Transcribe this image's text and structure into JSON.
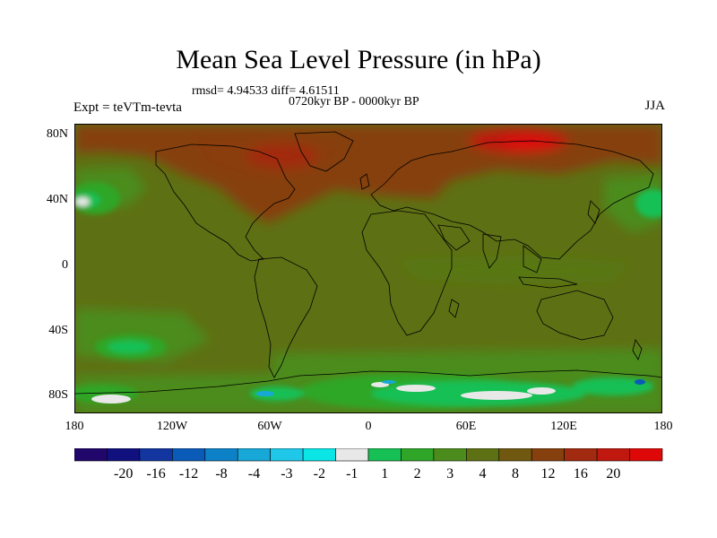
{
  "title": "Mean Sea Level Pressure (in hPa)",
  "stats": "rmsd= 4.94533 diff= 4.61511",
  "period": "0720kyr BP - 0000kyr BP",
  "experiment": "Expt = teVTm-tevta",
  "season": "JJA",
  "lat_labels": [
    "80N",
    "40N",
    "0",
    "40S",
    "80S"
  ],
  "lon_labels": [
    "180",
    "120W",
    "60W",
    "0",
    "60E",
    "120E",
    "180"
  ],
  "colorbar": {
    "colors": [
      "#21066b",
      "#10107e",
      "#1235a0",
      "#0a5ab8",
      "#0d81c8",
      "#17a8d8",
      "#1fc8e8",
      "#0ae6e6",
      "#e8e8e8",
      "#16c054",
      "#2fa628",
      "#4c8c1c",
      "#5e7014",
      "#705810",
      "#86400e",
      "#a22a10",
      "#c0180e",
      "#de0808"
    ],
    "labels": [
      "-20",
      "-16",
      "-12",
      "-8",
      "-4",
      "-3",
      "-2",
      "-1",
      "1",
      "2",
      "3",
      "4",
      "8",
      "12",
      "16",
      "20"
    ]
  },
  "colors": {
    "background_field": "#5e7014",
    "positive_high": "#86400e",
    "positive_max": "#c0180e",
    "moderate": "#4c8c1c",
    "light": "#2fa628",
    "low": "#16c054",
    "near_zero": "#e8e8e8",
    "negative": "#17a8d8"
  }
}
